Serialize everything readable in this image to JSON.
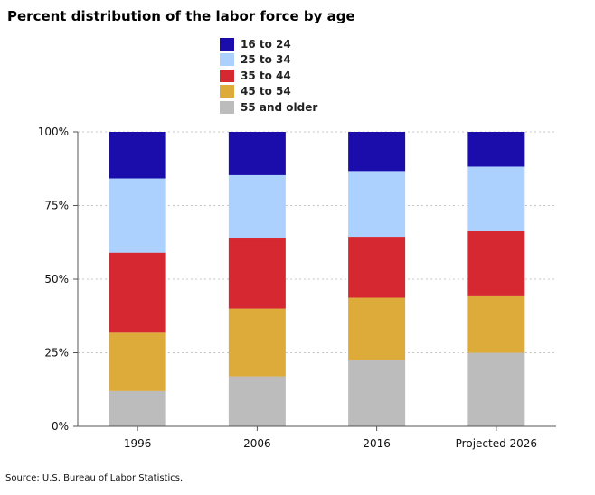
{
  "title": "Percent distribution of the labor force by age",
  "source": "Source: U.S. Bureau of Labor Statistics.",
  "legend": [
    {
      "label": "16 to 24",
      "color": "#1a0dab"
    },
    {
      "label": "25 to 34",
      "color": "#acd1ff"
    },
    {
      "label": "35 to 44",
      "color": "#d62830"
    },
    {
      "label": "45 to 54",
      "color": "#ddab3a"
    },
    {
      "label": "55 and older",
      "color": "#bcbcbc"
    }
  ],
  "chart_data": {
    "type": "bar",
    "stacked": true,
    "title": "Percent distribution of the labor force by age",
    "xlabel": "",
    "ylabel": "",
    "ylim": [
      0,
      100
    ],
    "yticks": [
      "0%",
      "25%",
      "50%",
      "75%",
      "100%"
    ],
    "grid": "horizontal dotted",
    "legend_position": "top-center",
    "categories": [
      "1996",
      "2006",
      "2016",
      "Projected 2026"
    ],
    "series": [
      {
        "name": "55 and older",
        "color": "#bcbcbc",
        "values": [
          12,
          17,
          22.5,
          25
        ]
      },
      {
        "name": "45 to 54",
        "color": "#ddab3a",
        "values": [
          19.8,
          23,
          21.2,
          19.2
        ]
      },
      {
        "name": "35 to 44",
        "color": "#d62830",
        "values": [
          27.2,
          23.8,
          20.7,
          22.1
        ]
      },
      {
        "name": "25 to 34",
        "color": "#acd1ff",
        "values": [
          25.2,
          21.5,
          22.3,
          21.9
        ]
      },
      {
        "name": "16 to 24",
        "color": "#1a0dab",
        "values": [
          15.8,
          14.7,
          13.3,
          11.8
        ]
      }
    ]
  }
}
